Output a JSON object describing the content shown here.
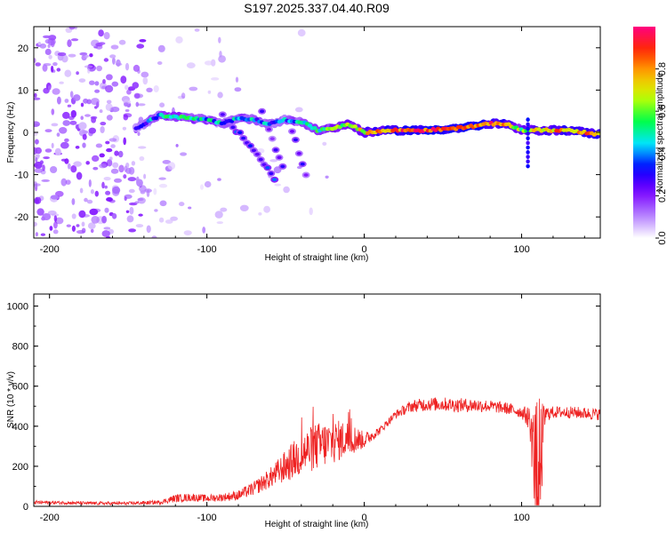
{
  "title": "S197.2025.337.04.40.R09",
  "chart_data": [
    {
      "type": "heatmap",
      "title": "S197.2025.337.04.40.R09",
      "xlabel": "Height of straight line (km)",
      "ylabel": "Frequency (Hz)",
      "xlim": [
        -210,
        150
      ],
      "ylim": [
        -25,
        25
      ],
      "xticks": [
        -200,
        -100,
        0,
        100
      ],
      "yticks": [
        -20,
        -10,
        0,
        10,
        20
      ],
      "colorbar": {
        "label": "Normalized spectral amplitude",
        "range": [
          0,
          1
        ],
        "ticks": [
          0.0,
          0.2,
          0.4,
          0.6,
          0.8
        ],
        "tick_labels": [
          "0.0",
          "0.2",
          "0.4",
          "0.6",
          "0.8"
        ],
        "colormap": [
          "#ffffff",
          "#b27cff",
          "#7a00ff",
          "#0000ff",
          "#00e5ff",
          "#00ff44",
          "#c8ff00",
          "#ffb000",
          "#ff2a00",
          "#ff0080"
        ]
      },
      "ridge": {
        "description_points_x_km": [
          -145,
          -130,
          -115,
          -100,
          -90,
          -80,
          -70,
          -60,
          -50,
          -40,
          -30,
          -20,
          -10,
          0,
          20,
          40,
          60,
          80,
          90,
          100,
          110,
          130,
          150
        ],
        "frequency_hz": [
          1.0,
          4.0,
          3.5,
          3.0,
          2.0,
          3.5,
          3.0,
          2.0,
          3.0,
          2.5,
          0.5,
          1.0,
          2.0,
          0.0,
          0.5,
          0.5,
          1.0,
          2.0,
          2.0,
          0.5,
          0.5,
          0.5,
          -0.5
        ],
        "amplitude": [
          0.25,
          0.45,
          0.5,
          0.45,
          0.4,
          0.45,
          0.4,
          0.35,
          0.4,
          0.45,
          0.5,
          0.55,
          0.6,
          0.7,
          0.85,
          0.9,
          0.9,
          0.85,
          0.8,
          0.6,
          0.75,
          0.8,
          0.8
        ]
      },
      "branches": [
        {
          "x_km": [
            -90,
            -75,
            -62,
            -55
          ],
          "frequency_hz": [
            4,
            -2,
            -8,
            -12
          ],
          "amplitude": 0.3
        },
        {
          "x_km": [
            -65,
            -57,
            -50
          ],
          "frequency_hz": [
            5,
            -3,
            -10
          ],
          "amplitude": 0.25
        },
        {
          "x_km": [
            -48,
            -42,
            -36
          ],
          "frequency_hz": [
            3,
            -4,
            -11
          ],
          "amplitude": 0.25
        }
      ]
    },
    {
      "type": "line",
      "xlabel": "Height of straight line (km)",
      "ylabel": "SNR (10 * v/v)",
      "xlim": [
        -210,
        150
      ],
      "ylim": [
        0,
        1060
      ],
      "xticks": [
        -200,
        -100,
        0,
        100
      ],
      "yticks": [
        0,
        200,
        400,
        600,
        800,
        1000
      ],
      "color": "#ee2222",
      "series": [
        {
          "name": "SNR",
          "x": [
            -210,
            -190,
            -170,
            -150,
            -130,
            -120,
            -110,
            -100,
            -90,
            -80,
            -70,
            -60,
            -50,
            -40,
            -30,
            -20,
            -10,
            0,
            10,
            20,
            30,
            40,
            50,
            60,
            70,
            80,
            90,
            100,
            105,
            108,
            110,
            115,
            120,
            130,
            140,
            150
          ],
          "values": [
            20,
            18,
            15,
            15,
            20,
            40,
            45,
            40,
            45,
            55,
            90,
            140,
            200,
            260,
            300,
            320,
            340,
            330,
            380,
            460,
            500,
            510,
            510,
            505,
            505,
            500,
            490,
            470,
            440,
            250,
            60,
            460,
            470,
            470,
            465,
            460
          ],
          "noise_amplitude": [
            10,
            8,
            8,
            8,
            10,
            20,
            20,
            18,
            20,
            25,
            35,
            50,
            80,
            110,
            120,
            110,
            90,
            40,
            20,
            20,
            30,
            35,
            35,
            35,
            35,
            30,
            30,
            30,
            60,
            250,
            500,
            40,
            30,
            30,
            30,
            30
          ]
        }
      ]
    }
  ]
}
